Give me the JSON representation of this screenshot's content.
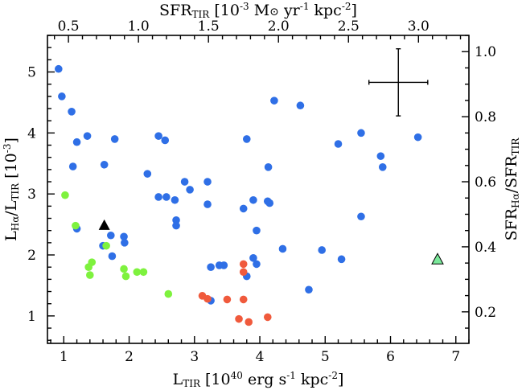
{
  "chart_data": {
    "type": "scatter",
    "bottom_axis": {
      "label": "L",
      "label_sub": "TIR",
      "label_rest": " [10",
      "label_sup": "40",
      "label_end": " erg s",
      "label_sup2": "-1",
      "label_end2": " kpc",
      "label_sup3": "-2",
      "label_close": "]",
      "range": [
        0.75,
        7.2
      ],
      "ticks": [
        1,
        2,
        3,
        4,
        5,
        6,
        7
      ],
      "tick_labels": [
        "1",
        "2",
        "3",
        "4",
        "5",
        "6",
        "7"
      ],
      "minor_step": 0.2
    },
    "left_axis": {
      "label_L1": "L",
      "label_sub1": "Hα",
      "label_slash": "/L",
      "label_sub2": "TIR",
      "label_rest": " [10",
      "label_sup": "-3",
      "label_close": "]",
      "range": [
        0.55,
        5.6
      ],
      "ticks": [
        1,
        2,
        3,
        4,
        5
      ],
      "tick_labels": [
        "1",
        "2",
        "3",
        "4",
        "5"
      ],
      "minor_step": 0.2
    },
    "top_axis": {
      "label_main": "SFR",
      "label_sub": "TIR",
      "label_rest": " [10",
      "label_sup": "-3",
      "label_mid": " M",
      "label_sun": "⊙",
      "label_mid2": " yr",
      "label_sup2": "-1",
      "label_mid3": " kpc",
      "label_sup3": "-2",
      "label_close": "]",
      "ticks": [
        0.5,
        1.0,
        1.5,
        2.0,
        2.5,
        3.0
      ],
      "tick_labels": [
        "0.5",
        "1.0",
        "1.5",
        "2.0",
        "2.5",
        "3.0"
      ],
      "minor_step": 0.1,
      "per_bottom_unit": 0.4667
    },
    "right_axis": {
      "label_main": "SFR",
      "label_sub1": "Hα",
      "label_slash": "/SFR",
      "label_sub2": "TIR",
      "ticks": [
        0.2,
        0.4,
        0.6,
        0.8,
        1.0
      ],
      "tick_labels": [
        "0.2",
        "0.4",
        "0.6",
        "0.8",
        "1.0"
      ],
      "minor_step": 0.05,
      "per_left_unit": 0.1875
    },
    "colors": {
      "blue": "#2f6fe6",
      "red": "#f05a3c",
      "green": "#7ef23e",
      "black": "#000000",
      "mint": "#7ae89a"
    },
    "series": [
      {
        "name": "blue",
        "marker": "circle",
        "color": "#2f6fe6",
        "points": [
          [
            0.92,
            5.05
          ],
          [
            0.97,
            4.6
          ],
          [
            1.12,
            4.35
          ],
          [
            1.2,
            3.85
          ],
          [
            1.36,
            3.95
          ],
          [
            1.14,
            3.45
          ],
          [
            1.2,
            2.43
          ],
          [
            1.62,
            3.48
          ],
          [
            1.78,
            3.9
          ],
          [
            1.72,
            2.32
          ],
          [
            1.92,
            2.3
          ],
          [
            1.93,
            2.2
          ],
          [
            1.6,
            2.15
          ],
          [
            1.74,
            1.98
          ],
          [
            2.28,
            3.33
          ],
          [
            2.45,
            3.95
          ],
          [
            2.55,
            3.88
          ],
          [
            2.45,
            2.95
          ],
          [
            2.57,
            2.95
          ],
          [
            2.72,
            2.57
          ],
          [
            2.72,
            2.48
          ],
          [
            2.7,
            2.9
          ],
          [
            2.85,
            3.2
          ],
          [
            2.93,
            3.07
          ],
          [
            3.2,
            3.2
          ],
          [
            3.2,
            2.83
          ],
          [
            3.25,
            1.8
          ],
          [
            3.38,
            1.83
          ],
          [
            3.45,
            1.83
          ],
          [
            3.25,
            1.25
          ],
          [
            3.75,
            2.76
          ],
          [
            3.8,
            3.9
          ],
          [
            3.8,
            1.65
          ],
          [
            3.9,
            2.9
          ],
          [
            3.95,
            2.4
          ],
          [
            3.9,
            1.95
          ],
          [
            3.95,
            1.85
          ],
          [
            4.12,
            2.88
          ],
          [
            4.15,
            2.85
          ],
          [
            4.13,
            3.44
          ],
          [
            4.22,
            4.53
          ],
          [
            4.35,
            2.1
          ],
          [
            4.62,
            4.45
          ],
          [
            4.75,
            1.43
          ],
          [
            4.95,
            2.08
          ],
          [
            5.2,
            3.82
          ],
          [
            5.25,
            1.93
          ],
          [
            5.55,
            4.0
          ],
          [
            5.55,
            2.63
          ],
          [
            5.85,
            3.62
          ],
          [
            5.88,
            3.44
          ],
          [
            6.42,
            3.93
          ]
        ]
      },
      {
        "name": "red",
        "marker": "circle",
        "color": "#f05a3c",
        "points": [
          [
            3.12,
            1.33
          ],
          [
            3.2,
            1.28
          ],
          [
            3.5,
            1.27
          ],
          [
            3.75,
            1.27
          ],
          [
            3.75,
            1.85
          ],
          [
            3.75,
            1.72
          ],
          [
            3.68,
            0.95
          ],
          [
            3.83,
            0.9
          ],
          [
            4.12,
            0.98
          ]
        ]
      },
      {
        "name": "green",
        "marker": "circle",
        "color": "#7ef23e",
        "points": [
          [
            1.02,
            2.98
          ],
          [
            1.18,
            2.48
          ],
          [
            1.65,
            2.15
          ],
          [
            1.38,
            1.8
          ],
          [
            1.43,
            1.88
          ],
          [
            1.4,
            1.67
          ],
          [
            1.92,
            1.77
          ],
          [
            1.95,
            1.65
          ],
          [
            2.12,
            1.72
          ],
          [
            2.22,
            1.72
          ],
          [
            2.6,
            1.36
          ]
        ]
      },
      {
        "name": "black-triangle",
        "marker": "triangle",
        "color": "#000000",
        "points": [
          [
            1.62,
            2.48
          ]
        ]
      },
      {
        "name": "mint-triangle",
        "marker": "triangle",
        "color": "#7ae89a",
        "points": [
          [
            6.72,
            1.92
          ]
        ]
      }
    ],
    "error_bar": {
      "x": 6.12,
      "y": 4.83,
      "x_half_width": 0.45,
      "y_half_height": 0.55
    }
  }
}
